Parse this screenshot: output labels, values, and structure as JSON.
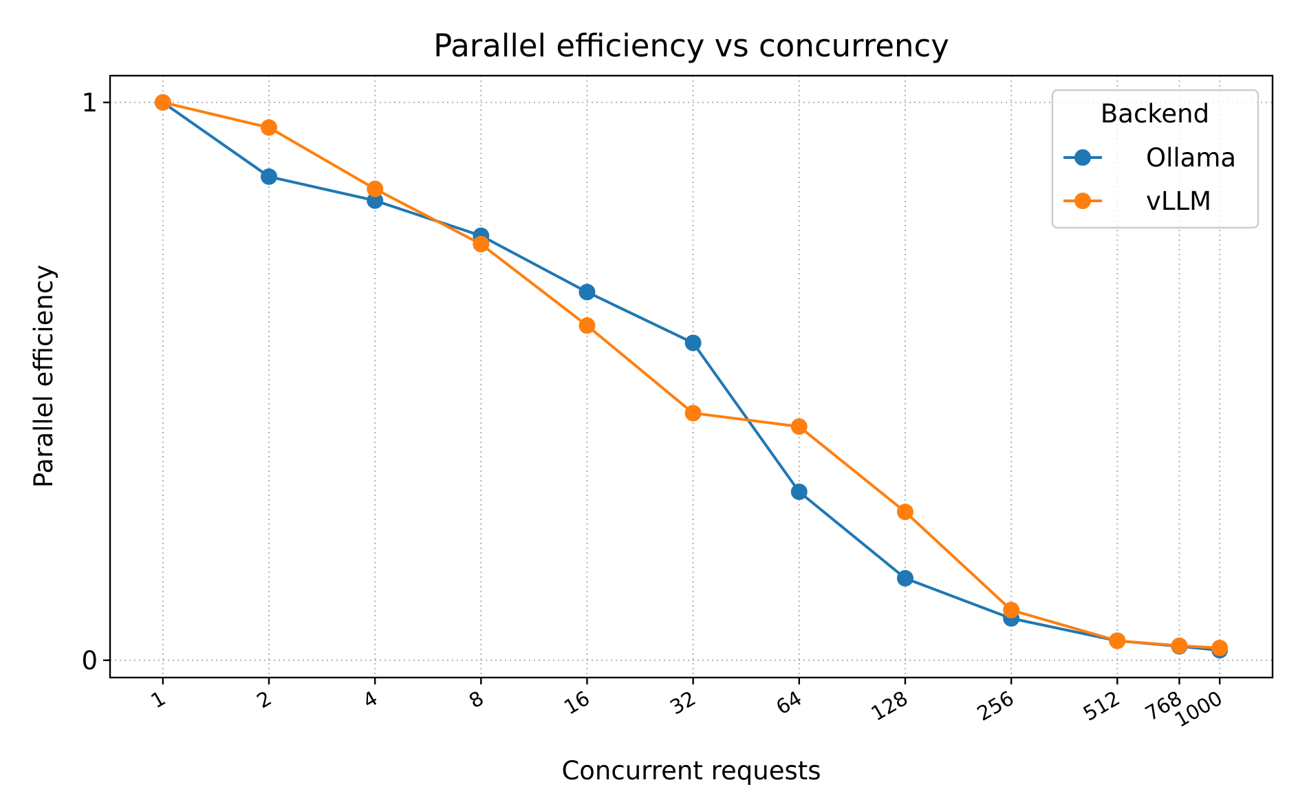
{
  "chart_data": {
    "type": "line",
    "title": "Parallel efficiency vs concurrency",
    "xlabel": "Concurrent requests",
    "ylabel": "Parallel efficiency",
    "x_scale": "log2",
    "x": [
      1,
      2,
      4,
      8,
      16,
      32,
      64,
      128,
      256,
      512,
      768,
      1000
    ],
    "x_tick_labels": [
      "1",
      "2",
      "4",
      "8",
      "16",
      "32",
      "64",
      "128",
      "256",
      "512",
      "768",
      "1000"
    ],
    "y_ticks": [
      0,
      1
    ],
    "y_tick_labels": [
      "0",
      "1"
    ],
    "ylim": [
      -0.031,
      1.048
    ],
    "grid": true,
    "legend": {
      "title": "Backend",
      "placement": "top-right"
    },
    "series": [
      {
        "name": "Ollama",
        "color": "#1f77b4",
        "values": [
          1.0,
          0.867,
          0.824,
          0.761,
          0.66,
          0.569,
          0.302,
          0.147,
          0.075,
          0.035,
          0.025,
          0.018
        ]
      },
      {
        "name": "vLLM",
        "color": "#ff7f0e",
        "values": [
          1.0,
          0.955,
          0.845,
          0.746,
          0.6,
          0.443,
          0.419,
          0.266,
          0.09,
          0.035,
          0.026,
          0.022
        ]
      }
    ]
  }
}
